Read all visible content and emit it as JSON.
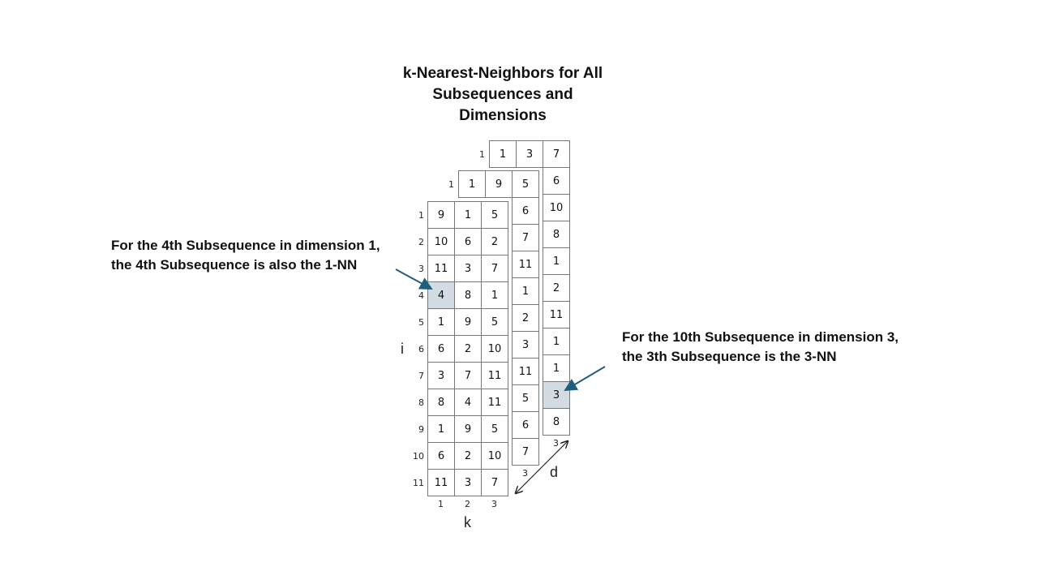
{
  "title": "k-Nearest-Neighbors for All\nSubsequences and\nDimensions",
  "annotations": {
    "left": "For the 4th Subsequence in dimension 1,\nthe 4th Subsequence is also the 1-NN",
    "right": "For the 10th Subsequence in dimension 3,\nthe 3th Subsequence is the 3-NN"
  },
  "axes": {
    "i": "i",
    "k": "k",
    "d": "d"
  },
  "colors": {
    "highlight": "#d3dbe3",
    "arrow": "#1f5f7d",
    "grid": "#777777"
  },
  "layers": [
    {
      "dimension": 3,
      "row_labels": [
        "1"
      ],
      "col_labels": [
        "3"
      ],
      "cells": [
        [
          "1",
          "3",
          "7"
        ]
      ],
      "extra_column": [
        "6",
        "10",
        "8",
        "1",
        "2",
        "11",
        "1",
        "1",
        "3",
        "8"
      ],
      "highlight_extra_index": 8
    },
    {
      "dimension": 2,
      "row_labels": [
        "1"
      ],
      "col_labels": [
        "3"
      ],
      "cells": [
        [
          "1",
          "9",
          "5"
        ]
      ],
      "extra_column": [
        "6",
        "7",
        "11",
        "1",
        "2",
        "3",
        "11",
        "5",
        "6",
        "7"
      ]
    },
    {
      "dimension": 1,
      "row_labels": [
        "1",
        "2",
        "3",
        "4",
        "5",
        "6",
        "7",
        "8",
        "9",
        "10",
        "11"
      ],
      "col_labels": [
        "1",
        "2",
        "3"
      ],
      "cells": [
        [
          "9",
          "1",
          "5"
        ],
        [
          "10",
          "6",
          "2"
        ],
        [
          "11",
          "3",
          "7"
        ],
        [
          "4",
          "8",
          "1"
        ],
        [
          "1",
          "9",
          "5"
        ],
        [
          "6",
          "2",
          "10"
        ],
        [
          "3",
          "7",
          "11"
        ],
        [
          "8",
          "4",
          "11"
        ],
        [
          "1",
          "9",
          "5"
        ],
        [
          "6",
          "2",
          "10"
        ],
        [
          "11",
          "3",
          "7"
        ]
      ],
      "highlight": [
        3,
        0
      ]
    }
  ]
}
